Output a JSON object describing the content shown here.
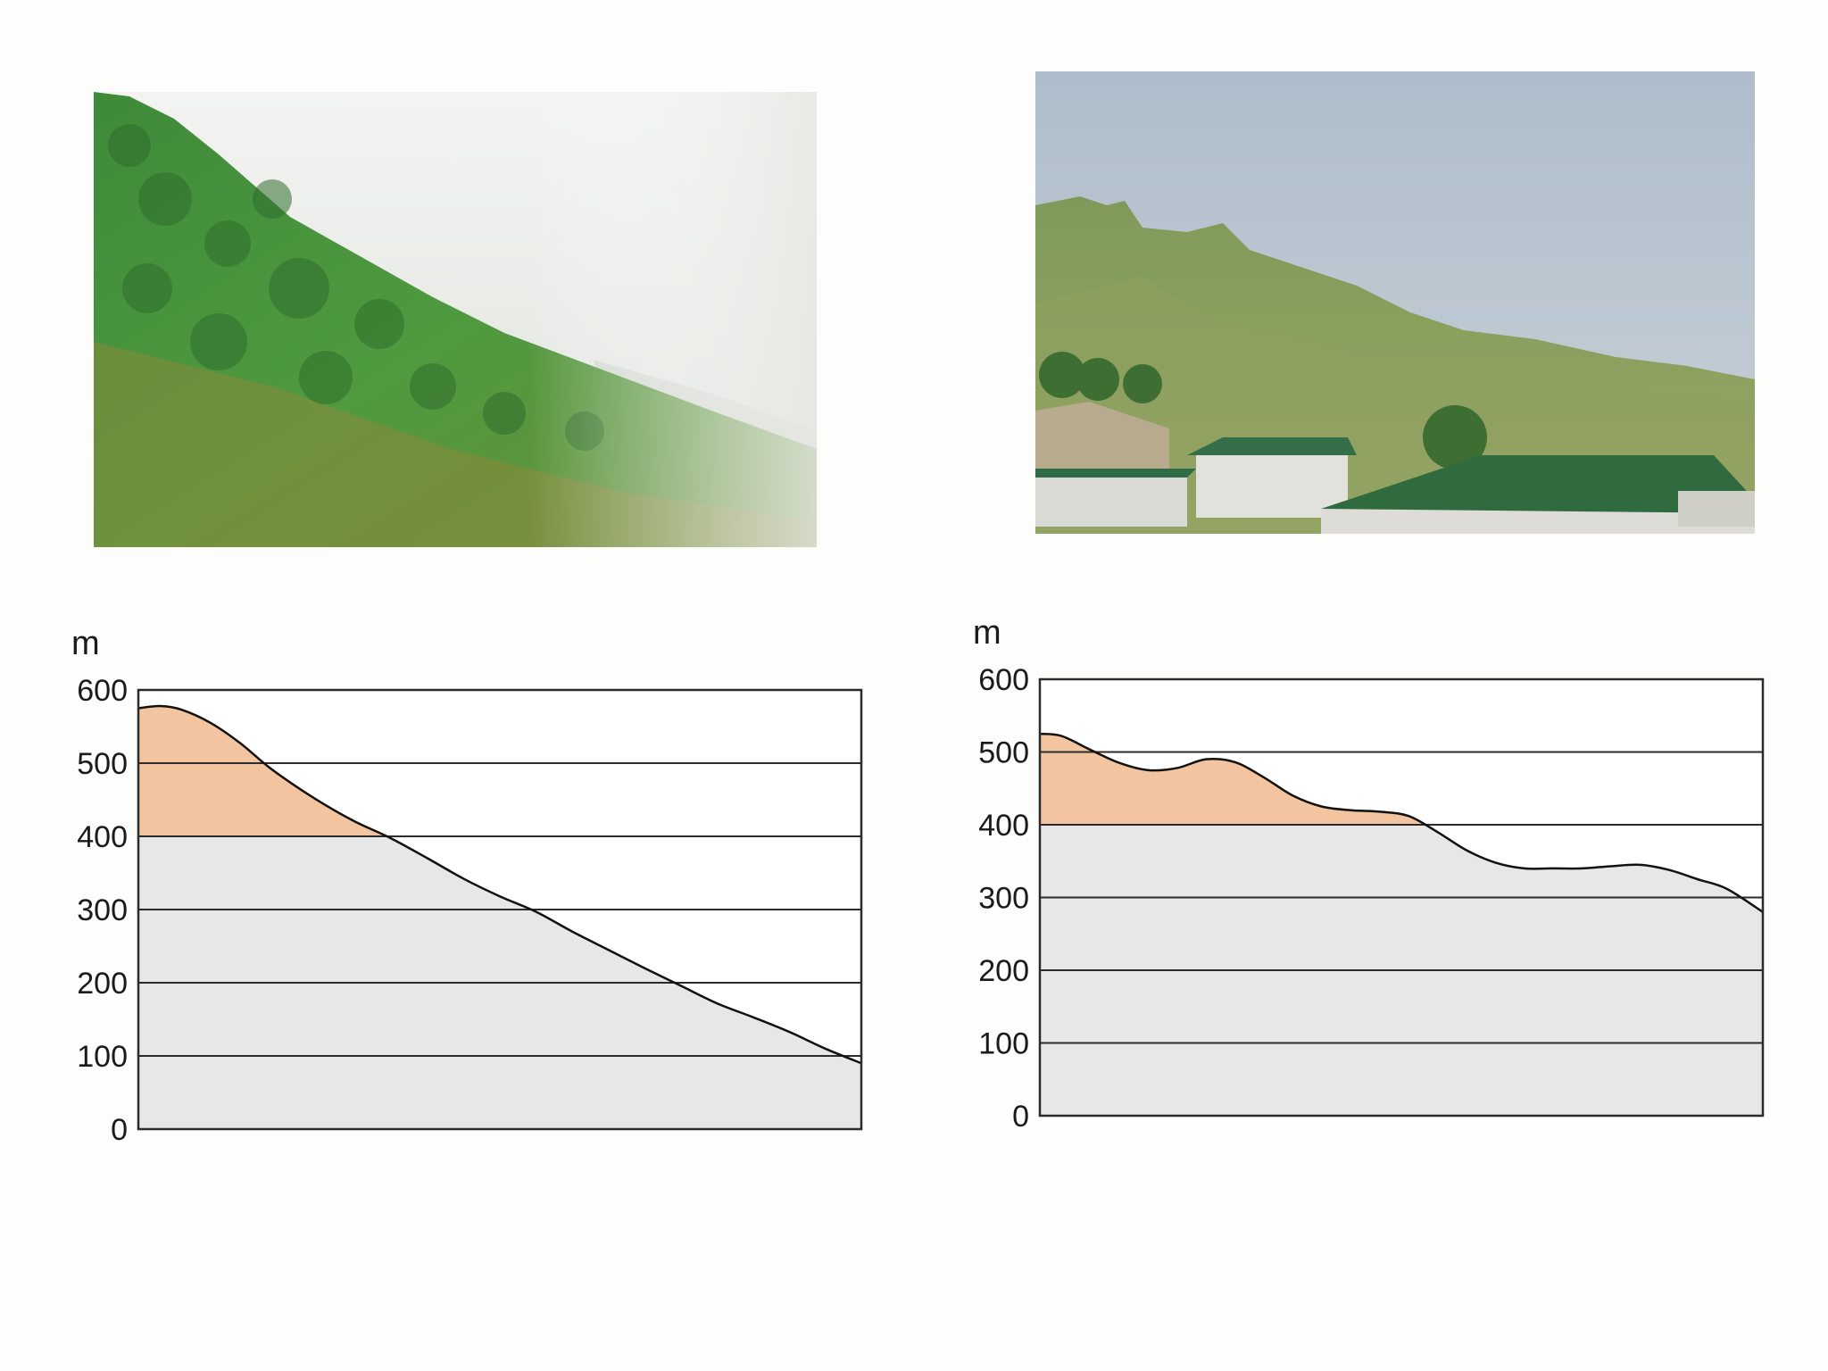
{
  "colors": {
    "upper_band": "#f2c4a0",
    "lower_band": "#e7e7e7",
    "plot_bg": "#ffffff",
    "gridline": "#2b2b2b",
    "profile_line": "#111111"
  },
  "photos": [
    {
      "icon": "forested-hillside-photo"
    },
    {
      "icon": "hillside-with-buildings-photo"
    }
  ],
  "chart_data": [
    {
      "type": "area",
      "ylabel": "m",
      "ylim": [
        0,
        600
      ],
      "yticks": [
        "0",
        "100",
        "200",
        "300",
        "400",
        "500",
        "600"
      ],
      "band_threshold": 400,
      "x": [
        0,
        0.03,
        0.06,
        0.1,
        0.14,
        0.18,
        0.22,
        0.26,
        0.3,
        0.35,
        0.4,
        0.45,
        0.5,
        0.55,
        0.6,
        0.65,
        0.7,
        0.75,
        0.8,
        0.85,
        0.9,
        0.95,
        1.0
      ],
      "y": [
        575,
        578,
        573,
        555,
        528,
        495,
        467,
        442,
        420,
        397,
        370,
        342,
        318,
        297,
        270,
        245,
        220,
        196,
        172,
        153,
        133,
        110,
        90
      ]
    },
    {
      "type": "area",
      "ylabel": "m",
      "ylim": [
        0,
        600
      ],
      "yticks": [
        "0",
        "100",
        "200",
        "300",
        "400",
        "500",
        "600"
      ],
      "band_threshold": 400,
      "x": [
        0,
        0.03,
        0.07,
        0.11,
        0.15,
        0.19,
        0.23,
        0.27,
        0.31,
        0.35,
        0.39,
        0.43,
        0.47,
        0.51,
        0.55,
        0.59,
        0.63,
        0.67,
        0.71,
        0.75,
        0.79,
        0.83,
        0.87,
        0.91,
        0.95,
        1.0
      ],
      "y": [
        525,
        522,
        503,
        485,
        475,
        478,
        490,
        486,
        465,
        440,
        425,
        420,
        418,
        412,
        390,
        365,
        348,
        340,
        340,
        340,
        343,
        345,
        338,
        325,
        312,
        280
      ]
    }
  ]
}
